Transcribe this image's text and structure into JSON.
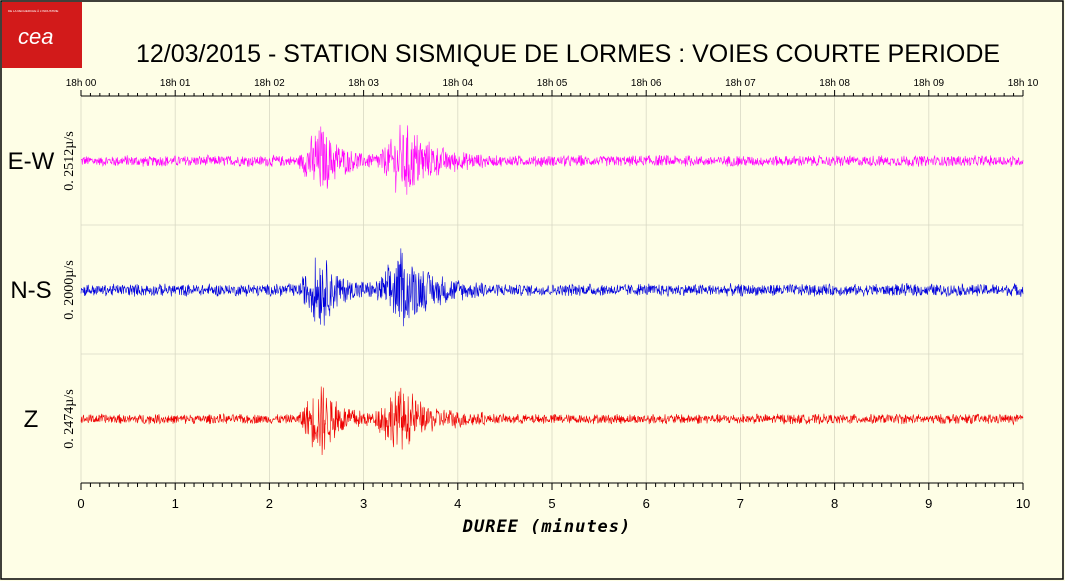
{
  "logo": {
    "text": "cea",
    "small_text": "DE LA RECHERCHE À L'INDUSTRIE",
    "color": "#d21a1a"
  },
  "chart_data": {
    "type": "line",
    "title": "12/03/2015  -  STATION SISMIQUE DE LORMES : VOIES COURTE PERIODE",
    "xlabel": "DUREE (minutes)",
    "xlim": [
      0,
      10
    ],
    "bottom_ticks": [
      "0",
      "1",
      "2",
      "3",
      "4",
      "5",
      "6",
      "7",
      "8",
      "9",
      "10"
    ],
    "top_ticks": [
      "18h 00",
      "18h 01",
      "18h 02",
      "18h 03",
      "18h 04",
      "18h 05",
      "18h 06",
      "18h 07",
      "18h 08",
      "18h 09",
      "18h 10"
    ],
    "series": [
      {
        "name": "E-W",
        "scale_label": "0. 2512µ/s",
        "color": "#ff00ff",
        "noise_amplitude": 0.09,
        "events": [
          {
            "start": 2.3,
            "peak": 2.55,
            "end": 3.1,
            "amplitude": 0.55
          },
          {
            "start": 3.1,
            "peak": 3.45,
            "end": 4.3,
            "amplitude": 0.55
          }
        ]
      },
      {
        "name": "N-S",
        "scale_label": "0. 2000µ/s",
        "color": "#0000dd",
        "noise_amplitude": 0.1,
        "events": [
          {
            "start": 2.3,
            "peak": 2.55,
            "end": 3.1,
            "amplitude": 0.55
          },
          {
            "start": 3.1,
            "peak": 3.4,
            "end": 4.3,
            "amplitude": 0.55
          }
        ]
      },
      {
        "name": "Z",
        "scale_label": "0. 2474µ/s",
        "color": "#ee0000",
        "noise_amplitude": 0.08,
        "events": [
          {
            "start": 2.3,
            "peak": 2.55,
            "end": 3.1,
            "amplitude": 0.6
          },
          {
            "start": 3.1,
            "peak": 3.35,
            "end": 4.3,
            "amplitude": 0.5
          }
        ]
      }
    ]
  }
}
